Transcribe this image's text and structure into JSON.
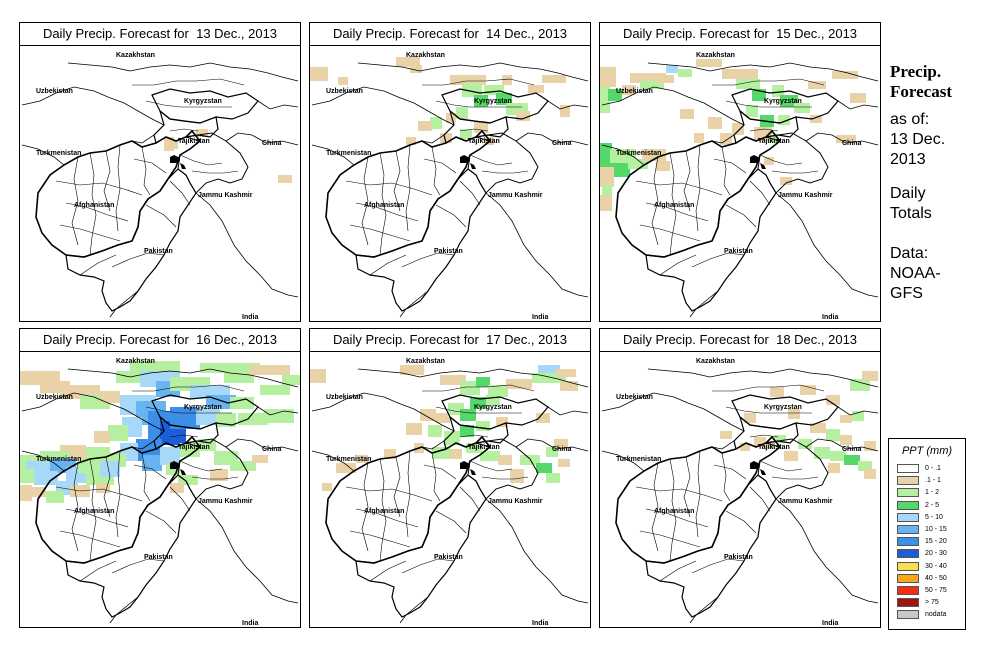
{
  "panels": [
    {
      "title": "Daily Precip. Forecast for  13 Dec., 2013"
    },
    {
      "title": "Daily Precip. Forecast for  14 Dec., 2013"
    },
    {
      "title": "Daily Precip. Forecast for  15 Dec., 2013"
    },
    {
      "title": "Daily Precip. Forecast for  16 Dec., 2013"
    },
    {
      "title": "Daily Precip. Forecast for  17 Dec., 2013"
    },
    {
      "title": "Daily Precip. Forecast for  18 Dec., 2013"
    }
  ],
  "map_labels": {
    "kazakhstan": "Kazakhstan",
    "uzbekistan": "Uzbekistan",
    "kyrgyzstan": "Kyrgyzstan",
    "tajikistan": "Tajikistan",
    "turkmenistan": "Turkmenistan",
    "china": "China",
    "afghanistan": "Afghanistan",
    "jammu_kashmir": "Jammu Kashmir",
    "pakistan": "Pakistan",
    "india": "India"
  },
  "side": {
    "title_line1": "Precip.",
    "title_line2": "Forecast",
    "asof": "as of:\n13 Dec.\n2013",
    "totals": "Daily\nTotals",
    "data": "Data:\nNOAA-\nGFS"
  },
  "legend": {
    "title": "PPT (mm)",
    "items": [
      {
        "label": "0 - .1",
        "color": "#ffffff"
      },
      {
        "label": ".1 - 1",
        "color": "#ead2a8"
      },
      {
        "label": "1 - 2",
        "color": "#b5f0a0"
      },
      {
        "label": "2 - 5",
        "color": "#55d86a"
      },
      {
        "label": "5 - 10",
        "color": "#a8d8f8"
      },
      {
        "label": "10 - 15",
        "color": "#68b4f0"
      },
      {
        "label": "15 - 20",
        "color": "#3c8ee8"
      },
      {
        "label": "20 - 30",
        "color": "#1c5ed8"
      },
      {
        "label": "30 - 40",
        "color": "#f8e050"
      },
      {
        "label": "40 - 50",
        "color": "#f8a818"
      },
      {
        "label": "50 - 75",
        "color": "#f03010"
      },
      {
        "label": "> 75",
        "color": "#a01410"
      },
      {
        "label": "nodata",
        "color": "#c8c8c8"
      }
    ]
  }
}
